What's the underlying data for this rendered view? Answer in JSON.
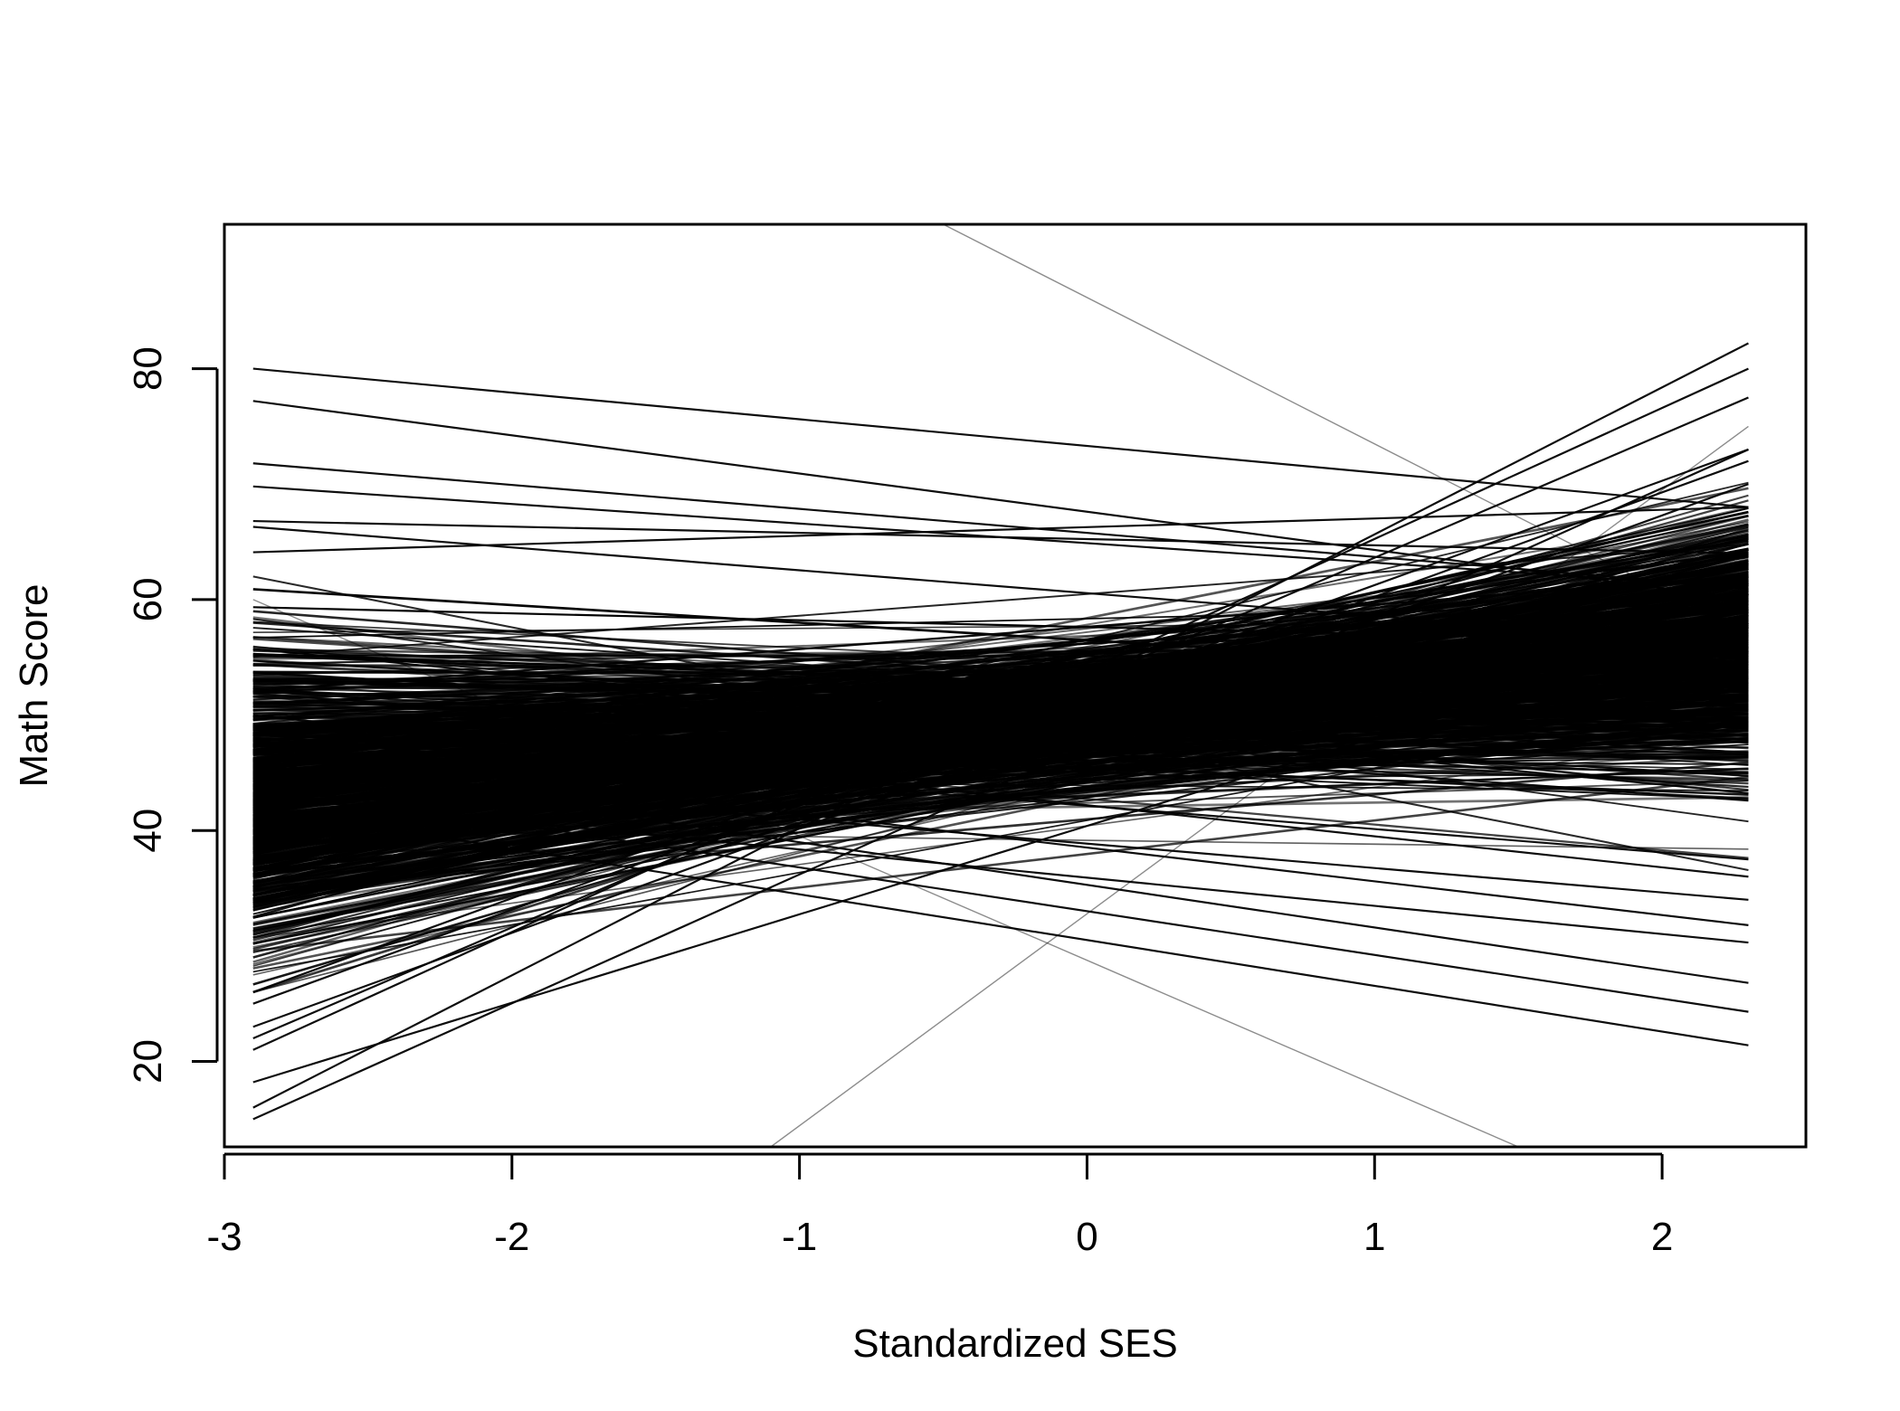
{
  "chart_data": {
    "type": "line",
    "title": "",
    "xlabel": "Standardized SES",
    "ylabel": "Math Score",
    "xlim": [
      -3.0,
      2.5
    ],
    "ylim": [
      12.6,
      92.5
    ],
    "xticks": [
      -3,
      -2,
      -1,
      0,
      1,
      2
    ],
    "yticks": [
      20,
      40,
      60,
      80
    ],
    "x_range": [
      -2.9,
      2.3
    ],
    "grid": false,
    "legend": "none",
    "line_color": "#000000",
    "notable_lines": [
      {
        "x": [
          -2.9,
          2.3
        ],
        "y": [
          80.0,
          68.0
        ]
      },
      {
        "x": [
          -2.9,
          2.3
        ],
        "y": [
          77.2,
          60.0
        ]
      },
      {
        "x": [
          -2.9,
          2.3
        ],
        "y": [
          71.8,
          61.0
        ]
      },
      {
        "x": [
          -2.9,
          2.3
        ],
        "y": [
          69.8,
          61.0
        ]
      },
      {
        "x": [
          -2.9,
          2.3
        ],
        "y": [
          66.8,
          64.0
        ]
      },
      {
        "x": [
          -2.9,
          2.3
        ],
        "y": [
          66.3,
          56.0
        ]
      },
      {
        "x": [
          -2.9,
          2.3
        ],
        "y": [
          64.1,
          68.0
        ]
      },
      {
        "x": [
          -2.9,
          2.3
        ],
        "y": [
          18.2,
          58.0
        ]
      },
      {
        "x": [
          -2.9,
          2.3
        ],
        "y": [
          15.0,
          73.0
        ]
      },
      {
        "x": [
          -2.9,
          2.3
        ],
        "y": [
          16.0,
          82.2
        ]
      },
      {
        "x": [
          -2.9,
          2.3
        ],
        "y": [
          21.0,
          80.0
        ]
      },
      {
        "x": [
          -2.9,
          2.3
        ],
        "y": [
          22.0,
          77.5
        ]
      },
      {
        "x": [
          -2.9,
          2.3
        ],
        "y": [
          26.0,
          73.0
        ]
      },
      {
        "x": [
          -2.9,
          2.3
        ],
        "y": [
          23.0,
          70.0
        ]
      },
      {
        "x": [
          -2.9,
          2.3
        ],
        "y": [
          25.0,
          72.0
        ]
      },
      {
        "x": [
          -2.9,
          2.3
        ],
        "y": [
          42.0,
          21.4
        ]
      },
      {
        "x": [
          -2.9,
          2.3
        ],
        "y": [
          44.0,
          24.3
        ]
      },
      {
        "x": [
          -2.9,
          2.3
        ],
        "y": [
          46.0,
          26.8
        ]
      },
      {
        "x": [
          -2.9,
          2.3
        ],
        "y": [
          43.0,
          30.3
        ]
      },
      {
        "x": [
          -2.9,
          2.3
        ],
        "y": [
          47.0,
          31.8
        ]
      },
      {
        "x": [
          -2.9,
          2.3
        ],
        "y": [
          45.0,
          34.0
        ]
      },
      {
        "x": [
          -2.9,
          2.3
        ],
        "y": [
          50.0,
          36.0
        ]
      },
      {
        "x": [
          -2.9,
          2.3
        ],
        "y": [
          48.0,
          37.5
        ]
      },
      {
        "x": [
          -1.1,
          2.3
        ],
        "y": [
          12.6,
          75.0
        ]
      },
      {
        "x": [
          -0.5,
          2.3
        ],
        "y": [
          92.5,
          57.0
        ]
      },
      {
        "x": [
          -2.9,
          1.5
        ],
        "y": [
          60.0,
          12.6
        ]
      }
    ],
    "background_bundle": {
      "count": 800,
      "left_y_range": [
        26,
        62
      ],
      "right_y_range": [
        30,
        72
      ]
    }
  }
}
